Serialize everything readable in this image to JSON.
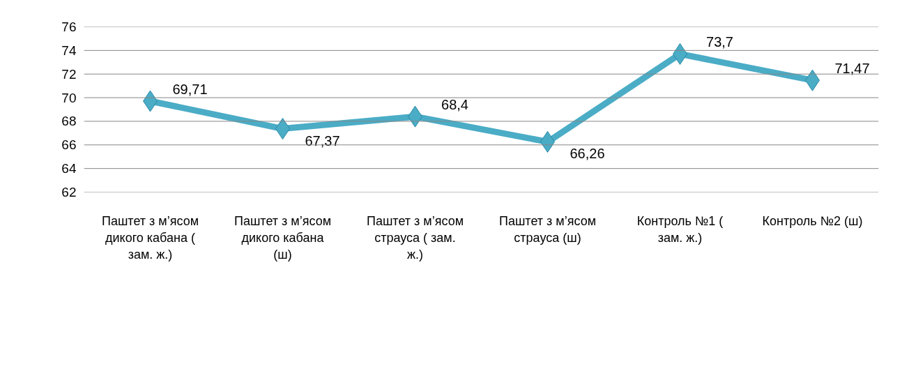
{
  "chart_data": {
    "type": "line",
    "categories": [
      "Паштет з м’ясом дикого кабана ( зам. ж.)",
      "Паштет з м’ясом дикого кабана (ш)",
      "Паштет з м’ясом страуса ( зам. ж.)",
      "Паштет з м’ясом страуса (ш)",
      "Контроль №1 ( зам. ж.)",
      "Контроль №2 (ш)"
    ],
    "series": [
      {
        "color": "#4bacc6",
        "values": [
          69.71,
          67.37,
          68.4,
          66.26,
          73.7,
          71.47
        ],
        "value_labels": [
          "69,71",
          "67,37",
          "68,4",
          "66,26",
          "73,7",
          "71,47"
        ]
      }
    ],
    "ylim": [
      62,
      76
    ],
    "yticks": [
      62,
      64,
      66,
      68,
      70,
      72,
      74,
      76
    ],
    "grid": "y",
    "marker": "diamond",
    "line_style": "solid"
  }
}
